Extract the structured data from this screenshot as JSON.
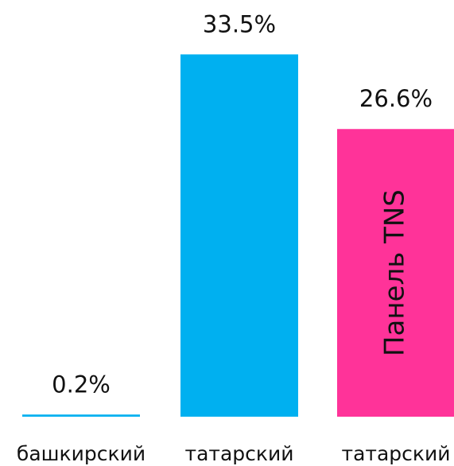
{
  "chart_data": {
    "type": "bar",
    "categories": [
      "башкирский",
      "татарский",
      "татарский"
    ],
    "values": [
      0.2,
      33.5,
      26.6
    ],
    "value_labels": [
      "0.2%",
      "33.5%",
      "26.6%"
    ],
    "colors": [
      "#00b0f0",
      "#00b0f0",
      "#ff3399"
    ],
    "annotation": "Панель TNS"
  }
}
